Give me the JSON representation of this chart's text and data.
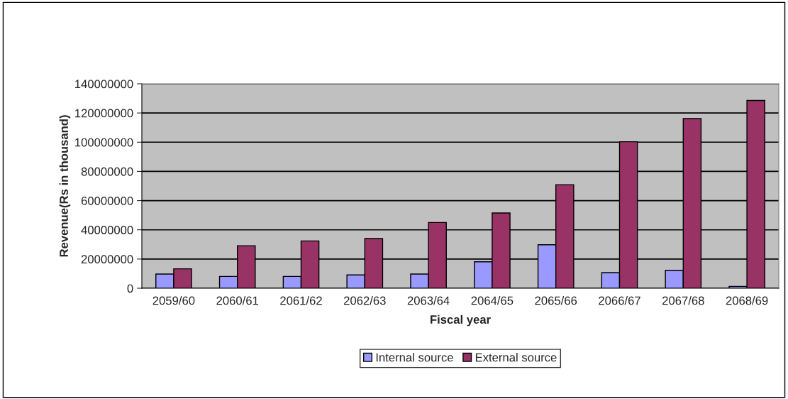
{
  "chart_data": {
    "type": "bar",
    "xlabel": "Fiscal year",
    "ylabel": "Revenue(Rs in thousand)",
    "categories": [
      "2059/60",
      "2060/61",
      "2061/62",
      "2062/63",
      "2063/64",
      "2064/65",
      "2065/66",
      "2066/67",
      "2067/68",
      "2068/69"
    ],
    "series": [
      {
        "name": "Internal source",
        "color": "#9999ff",
        "values": [
          9700000,
          8100000,
          8100000,
          9100000,
          9700000,
          18100000,
          29800000,
          10700000,
          12300000,
          1300000
        ]
      },
      {
        "name": "External source",
        "color": "#993366",
        "values": [
          13300000,
          29100000,
          32400000,
          34000000,
          45000000,
          51500000,
          70900000,
          100300000,
          116200000,
          128600000
        ]
      }
    ],
    "ylim": [
      0,
      140000000
    ],
    "yticks": [
      0,
      20000000,
      40000000,
      60000000,
      80000000,
      100000000,
      120000000,
      140000000
    ],
    "grid": "y",
    "legend": "bottom"
  }
}
